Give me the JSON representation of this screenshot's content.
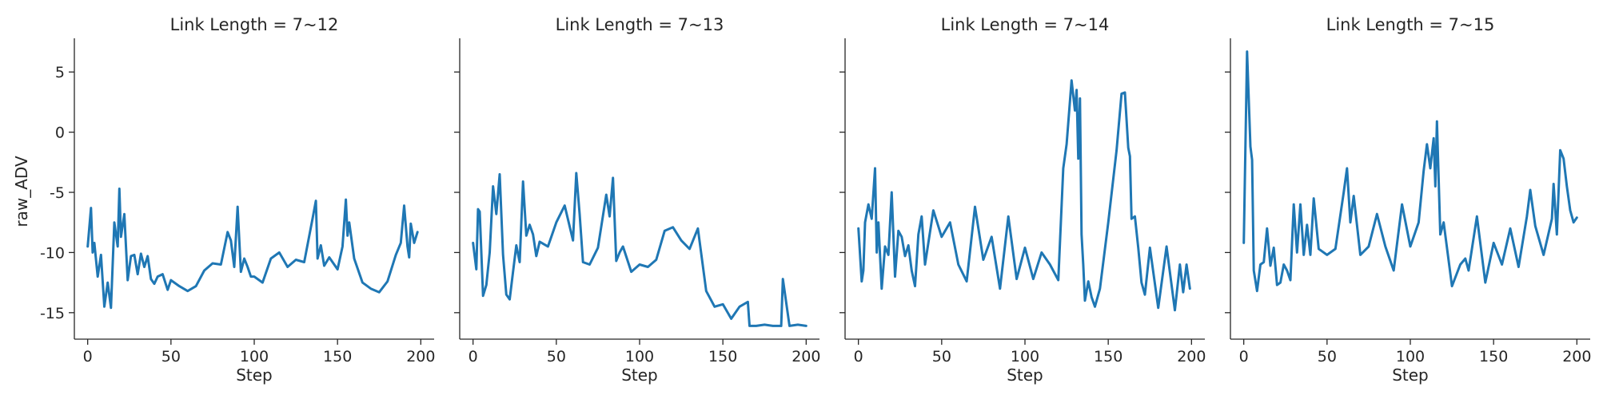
{
  "figure": {
    "ylabel": "raw_ADV",
    "xlabel": "Step",
    "line_color": "#1f77b4"
  },
  "chart_data": [
    {
      "type": "line",
      "title": "Link Length = 7~12",
      "xlabel": "Step",
      "ylabel": "raw_ADV",
      "xlim": [
        -8,
        208
      ],
      "ylim": [
        -17.2,
        7.8
      ],
      "xticks": [
        0,
        50,
        100,
        150,
        200
      ],
      "yticks": [
        -15,
        -10,
        -5,
        0,
        5
      ],
      "grid": false,
      "series": [
        {
          "x": [
            0,
            2,
            3,
            4,
            6,
            8,
            10,
            12,
            14,
            16,
            18,
            19,
            20,
            22,
            24,
            26,
            28,
            30,
            32,
            34,
            36,
            38,
            40,
            42,
            45,
            48,
            50,
            55,
            60,
            65,
            70,
            75,
            80,
            84,
            86,
            88,
            90,
            92,
            94,
            96,
            98,
            100,
            105,
            110,
            115,
            120,
            125,
            130,
            135,
            137,
            138,
            140,
            142,
            145,
            150,
            153,
            155,
            156,
            157,
            160,
            165,
            170,
            175,
            180,
            185,
            188,
            190,
            192,
            193,
            194,
            196,
            198
          ],
          "y": [
            -9.5,
            -6.3,
            -10,
            -9.2,
            -12,
            -10.2,
            -14.5,
            -12.5,
            -14.6,
            -7.5,
            -9.5,
            -4.7,
            -8.7,
            -6.8,
            -12.3,
            -10.3,
            -10.2,
            -11.8,
            -10.1,
            -11.2,
            -10.3,
            -12.2,
            -12.6,
            -12,
            -11.8,
            -13.1,
            -12.3,
            -12.8,
            -13.2,
            -12.8,
            -11.5,
            -10.9,
            -11,
            -8.3,
            -9,
            -11.2,
            -6.2,
            -11.6,
            -10.5,
            -11.2,
            -12,
            -12,
            -12.5,
            -10.5,
            -10,
            -11.2,
            -10.6,
            -10.8,
            -7.2,
            -5.7,
            -10.5,
            -9.4,
            -11.1,
            -10.4,
            -11.4,
            -9.5,
            -5.6,
            -8.6,
            -7.5,
            -10.5,
            -12.5,
            -13,
            -13.3,
            -12.4,
            -10.2,
            -9.2,
            -6.1,
            -9.5,
            -10.4,
            -7.6,
            -9.2,
            -8.3
          ]
        }
      ]
    },
    {
      "type": "line",
      "title": "Link Length = 7~13",
      "xlabel": "Step",
      "ylabel": "",
      "xlim": [
        -8,
        208
      ],
      "ylim": [
        -17.2,
        7.8
      ],
      "xticks": [
        0,
        50,
        100,
        150,
        200
      ],
      "yticks": [
        -15,
        -10,
        -5,
        0,
        5
      ],
      "grid": false,
      "series": [
        {
          "x": [
            0,
            2,
            3,
            4,
            6,
            8,
            10,
            12,
            14,
            16,
            18,
            20,
            22,
            24,
            26,
            28,
            30,
            32,
            34,
            36,
            38,
            40,
            45,
            50,
            55,
            60,
            62,
            64,
            66,
            70,
            75,
            80,
            82,
            84,
            86,
            88,
            90,
            95,
            100,
            105,
            110,
            115,
            120,
            125,
            130,
            135,
            140,
            145,
            150,
            155,
            160,
            165,
            166,
            168,
            170,
            175,
            180,
            185,
            186,
            190,
            195,
            200
          ],
          "y": [
            -9.2,
            -11.4,
            -6.4,
            -6.6,
            -13.6,
            -12.7,
            -10,
            -4.5,
            -6.8,
            -3.5,
            -10.2,
            -13.5,
            -13.9,
            -11.6,
            -9.4,
            -10.8,
            -4.1,
            -8.6,
            -7.7,
            -8.5,
            -10.3,
            -9.1,
            -9.5,
            -7.5,
            -6.1,
            -9,
            -3.4,
            -6.8,
            -10.8,
            -11,
            -9.6,
            -5.2,
            -7,
            -3.8,
            -10.7,
            -10,
            -9.5,
            -11.6,
            -11,
            -11.2,
            -10.6,
            -8.2,
            -7.9,
            -9,
            -9.7,
            -8,
            -13.2,
            -14.5,
            -14.3,
            -15.5,
            -14.5,
            -14.1,
            -16.1,
            -16.1,
            -16.1,
            -16,
            -16.1,
            -16.1,
            -12.2,
            -16.1,
            -16,
            -16.1
          ]
        }
      ]
    },
    {
      "type": "line",
      "title": "Link Length = 7~14",
      "xlabel": "Step",
      "ylabel": "",
      "xlim": [
        -8,
        208
      ],
      "ylim": [
        -17.2,
        7.8
      ],
      "xticks": [
        0,
        50,
        100,
        150,
        200
      ],
      "yticks": [
        -15,
        -10,
        -5,
        0,
        5
      ],
      "grid": false,
      "series": [
        {
          "x": [
            0,
            2,
            3,
            4,
            6,
            8,
            10,
            11,
            12,
            14,
            16,
            18,
            20,
            22,
            24,
            26,
            28,
            30,
            32,
            34,
            36,
            38,
            40,
            45,
            50,
            55,
            60,
            65,
            70,
            75,
            80,
            85,
            90,
            95,
            100,
            105,
            110,
            115,
            120,
            123,
            125,
            128,
            130,
            131,
            132,
            133,
            134,
            135,
            136,
            138,
            140,
            142,
            145,
            150,
            155,
            158,
            160,
            162,
            163,
            164,
            166,
            168,
            170,
            172,
            175,
            180,
            185,
            190,
            193,
            195,
            197,
            199
          ],
          "y": [
            -8,
            -12.4,
            -11.5,
            -7.5,
            -6,
            -7.2,
            -3,
            -10,
            -7.5,
            -13,
            -9.5,
            -10.2,
            -5,
            -12,
            -8.2,
            -8.7,
            -10.3,
            -9.4,
            -11.5,
            -12.8,
            -8.5,
            -7,
            -11,
            -6.5,
            -8.7,
            -7.5,
            -11,
            -12.4,
            -6.2,
            -10.6,
            -8.7,
            -13,
            -7,
            -12.2,
            -9.6,
            -12.2,
            -10,
            -11,
            -12.3,
            -3,
            -1,
            4.3,
            1.8,
            3.5,
            -2.2,
            2.8,
            -8.5,
            -11,
            -14,
            -12.4,
            -13.7,
            -14.5,
            -13,
            -7.5,
            -1.5,
            3.2,
            3.3,
            -1.3,
            -2,
            -7.2,
            -7,
            -9.6,
            -12.5,
            -13.5,
            -9.6,
            -14.6,
            -9.5,
            -14.8,
            -11,
            -13.3,
            -11,
            -13
          ]
        }
      ]
    },
    {
      "type": "line",
      "title": "Link Length = 7~15",
      "xlabel": "Step",
      "ylabel": "",
      "xlim": [
        -8,
        208
      ],
      "ylim": [
        -17.2,
        7.8
      ],
      "xticks": [
        0,
        50,
        100,
        150,
        200
      ],
      "yticks": [
        -15,
        -10,
        -5,
        0,
        5
      ],
      "grid": false,
      "series": [
        {
          "x": [
            0,
            2,
            4,
            5,
            6,
            8,
            10,
            12,
            14,
            16,
            18,
            20,
            22,
            24,
            26,
            28,
            30,
            32,
            34,
            36,
            38,
            40,
            42,
            45,
            50,
            55,
            60,
            62,
            64,
            66,
            70,
            75,
            80,
            85,
            90,
            95,
            100,
            105,
            108,
            110,
            112,
            114,
            115,
            116,
            118,
            120,
            125,
            130,
            133,
            135,
            140,
            145,
            150,
            155,
            160,
            165,
            170,
            172,
            175,
            180,
            185,
            186,
            188,
            190,
            192,
            194,
            196,
            198,
            200
          ],
          "y": [
            -9.2,
            6.7,
            -1.2,
            -2.3,
            -11.5,
            -13.2,
            -11,
            -10.8,
            -8,
            -11.1,
            -9.6,
            -12.7,
            -12.5,
            -11,
            -11.5,
            -12.3,
            -6,
            -10,
            -6,
            -10.2,
            -7.7,
            -10.2,
            -5.5,
            -9.7,
            -10.2,
            -9.7,
            -5,
            -3,
            -7.5,
            -5.3,
            -10.2,
            -9.5,
            -6.8,
            -9.5,
            -11.5,
            -6,
            -9.5,
            -7.5,
            -3.2,
            -1,
            -3,
            -0.5,
            -4.5,
            0.9,
            -8.5,
            -7.5,
            -12.8,
            -11,
            -10.5,
            -11.5,
            -7,
            -12.5,
            -9.2,
            -11,
            -8,
            -11.2,
            -7,
            -4.8,
            -7.8,
            -10.2,
            -7.2,
            -4.3,
            -8.5,
            -1.5,
            -2.2,
            -4.5,
            -6.5,
            -7.5,
            -7.1
          ]
        }
      ]
    }
  ]
}
